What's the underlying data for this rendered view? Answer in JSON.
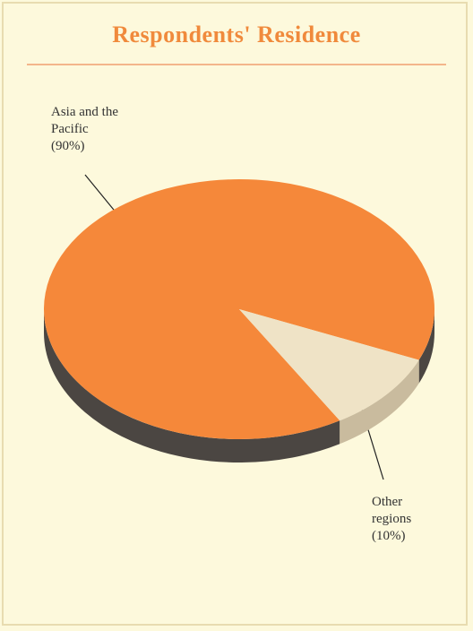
{
  "chart_data": {
    "type": "pie",
    "title": "Respondents' Residence",
    "categories": [
      "Asia and the Pacific",
      "Other regions"
    ],
    "values": [
      90,
      10
    ],
    "value_labels": [
      "(90%)",
      "(10%)"
    ],
    "colors": [
      "#f5883a",
      "#efe3c6"
    ],
    "side_colors": [
      "#4b4642",
      "#c9bb9e"
    ]
  }
}
